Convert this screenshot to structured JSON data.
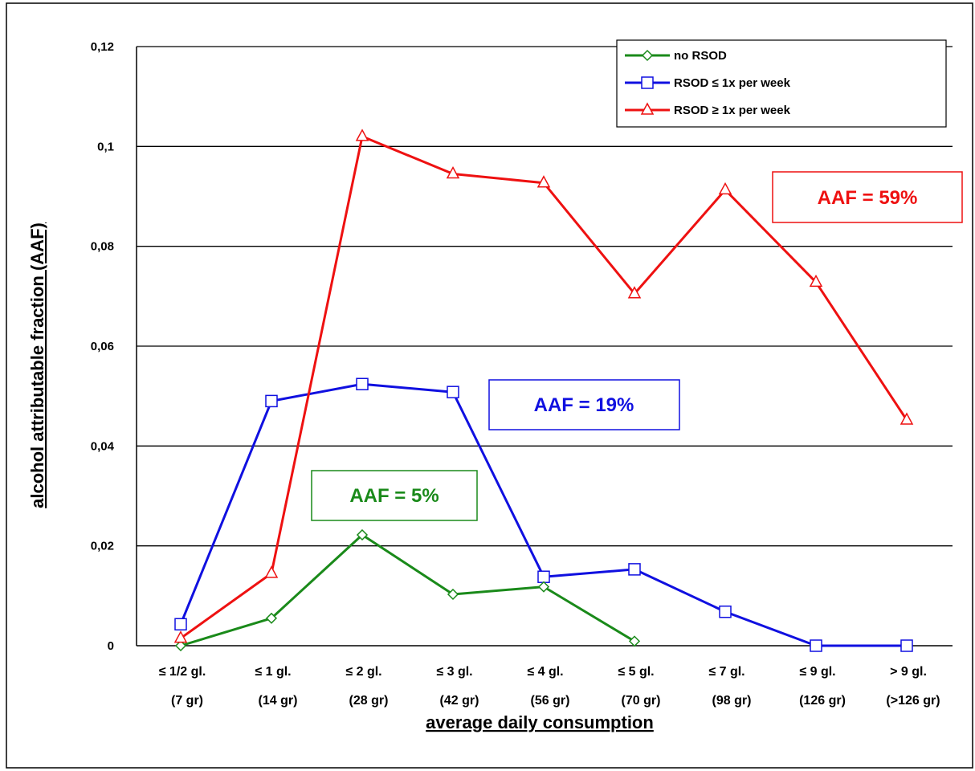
{
  "chart_data": {
    "type": "line",
    "title": "",
    "xlabel": "average daily consumption",
    "ylabel": "alcohol attributable fraction (AAF)",
    "ylim": [
      0,
      0.12
    ],
    "y_ticks": [
      {
        "value": 0,
        "label": "0"
      },
      {
        "value": 0.02,
        "label": "0,02"
      },
      {
        "value": 0.04,
        "label": "0,04"
      },
      {
        "value": 0.06,
        "label": "0,06"
      },
      {
        "value": 0.08,
        "label": "0,08"
      },
      {
        "value": 0.1,
        "label": "0,1"
      },
      {
        "value": 0.12,
        "label": "0,12"
      }
    ],
    "grid": true,
    "legend_position": "top-right",
    "categories": [
      {
        "line1": "≤ 1/2 gl.",
        "line2": "(7 gr)"
      },
      {
        "line1": "≤ 1 gl.",
        "line2": "(14 gr)"
      },
      {
        "line1": "≤ 2 gl.",
        "line2": "(28 gr)"
      },
      {
        "line1": "≤ 3 gl.",
        "line2": "(42 gr)"
      },
      {
        "line1": "≤ 4 gl.",
        "line2": "(56 gr)"
      },
      {
        "line1": "≤ 5 gl.",
        "line2": "(70 gr)"
      },
      {
        "line1": "≤ 7 gl.",
        "line2": "(98 gr)"
      },
      {
        "line1": "≤ 9 gl.",
        "line2": "(126 gr)"
      },
      {
        "line1": "> 9 gl.",
        "line2": "(>126 gr)"
      }
    ],
    "series": [
      {
        "name": "no RSOD",
        "color": "#1a8a1a",
        "marker": "diamond",
        "values": [
          0.0,
          0.0055,
          0.0222,
          0.0103,
          0.0118,
          0.0009,
          null,
          null,
          null
        ]
      },
      {
        "name": "RSOD ≤ 1x per week",
        "color": "#1010e0",
        "marker": "square",
        "values": [
          0.0043,
          0.049,
          0.0524,
          0.0508,
          0.0138,
          0.0153,
          0.0068,
          0.0,
          0.0
        ]
      },
      {
        "name": "RSOD ≥ 1x per week",
        "color": "#ee1111",
        "marker": "triangle",
        "values": [
          0.0015,
          0.0145,
          0.102,
          0.0945,
          0.0927,
          0.0705,
          0.0913,
          0.0728,
          0.0452
        ]
      }
    ],
    "annotations": [
      {
        "text": "AAF = 5%",
        "color": "#1a8a1a"
      },
      {
        "text": "AAF = 19%",
        "color": "#1010e0"
      },
      {
        "text": "AAF = 59%",
        "color": "#ee1111"
      }
    ]
  }
}
